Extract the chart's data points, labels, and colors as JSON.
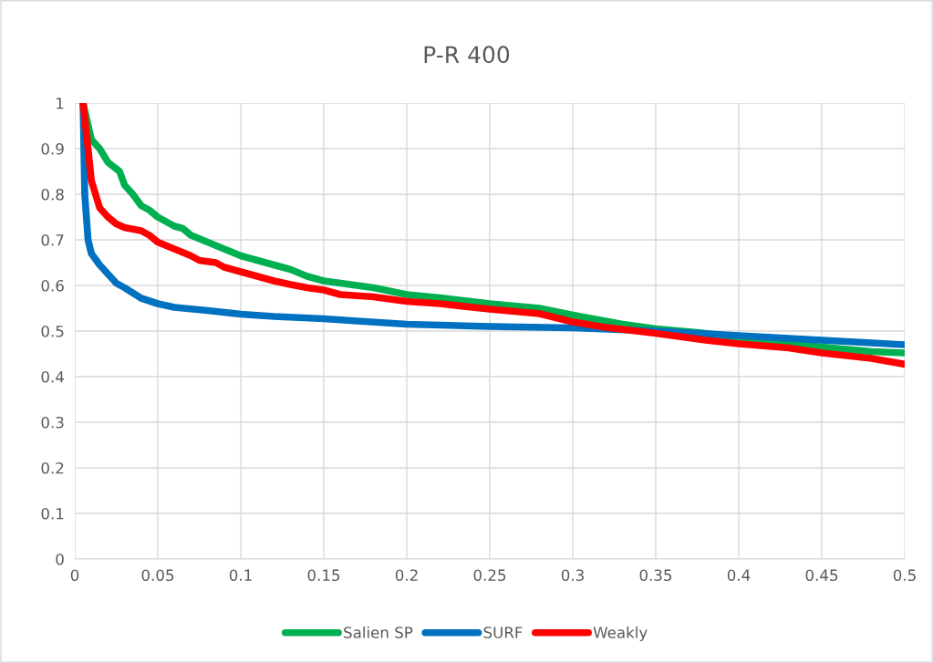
{
  "chart_data": {
    "type": "line",
    "title": "P-R 400",
    "xlim": [
      0,
      0.5
    ],
    "ylim": [
      0,
      1
    ],
    "xticks": [
      0,
      0.05,
      0.1,
      0.15,
      0.2,
      0.25,
      0.3,
      0.35,
      0.4,
      0.45,
      0.5
    ],
    "yticks": [
      0,
      0.1,
      0.2,
      0.3,
      0.4,
      0.5,
      0.6,
      0.7,
      0.8,
      0.9,
      1
    ],
    "grid": true,
    "legend": "bottom",
    "marker": "none",
    "line_style": "solid",
    "series": [
      {
        "name": "Salien SP",
        "color": "#00b050",
        "x": [
          0.005,
          0.01,
          0.015,
          0.02,
          0.027,
          0.03,
          0.035,
          0.04,
          0.045,
          0.05,
          0.06,
          0.065,
          0.07,
          0.08,
          0.09,
          0.1,
          0.11,
          0.12,
          0.13,
          0.14,
          0.15,
          0.16,
          0.18,
          0.2,
          0.22,
          0.25,
          0.28,
          0.3,
          0.33,
          0.35,
          0.38,
          0.4,
          0.45,
          0.48,
          0.5
        ],
        "values": [
          1.0,
          0.92,
          0.9,
          0.87,
          0.85,
          0.82,
          0.8,
          0.775,
          0.765,
          0.75,
          0.73,
          0.725,
          0.71,
          0.695,
          0.68,
          0.665,
          0.655,
          0.645,
          0.635,
          0.62,
          0.61,
          0.605,
          0.595,
          0.58,
          0.573,
          0.56,
          0.55,
          0.535,
          0.515,
          0.505,
          0.495,
          0.485,
          0.465,
          0.455,
          0.452
        ]
      },
      {
        "name": "SURF",
        "color": "#0070c0",
        "x": [
          0.005,
          0.006,
          0.008,
          0.01,
          0.015,
          0.02,
          0.025,
          0.03,
          0.04,
          0.05,
          0.06,
          0.08,
          0.1,
          0.12,
          0.15,
          0.17,
          0.2,
          0.25,
          0.3,
          0.35,
          0.4,
          0.45,
          0.5
        ],
        "values": [
          1.0,
          0.8,
          0.7,
          0.67,
          0.645,
          0.625,
          0.605,
          0.595,
          0.572,
          0.56,
          0.552,
          0.545,
          0.537,
          0.532,
          0.527,
          0.522,
          0.515,
          0.51,
          0.507,
          0.5,
          0.49,
          0.48,
          0.47
        ]
      },
      {
        "name": "Weakly",
        "color": "#ff0000",
        "x": [
          0.005,
          0.008,
          0.01,
          0.015,
          0.02,
          0.025,
          0.03,
          0.04,
          0.045,
          0.05,
          0.06,
          0.07,
          0.075,
          0.085,
          0.09,
          0.1,
          0.11,
          0.12,
          0.13,
          0.14,
          0.15,
          0.16,
          0.18,
          0.2,
          0.22,
          0.25,
          0.28,
          0.3,
          0.32,
          0.35,
          0.38,
          0.4,
          0.43,
          0.45,
          0.48,
          0.5
        ],
        "values": [
          1.0,
          0.9,
          0.83,
          0.77,
          0.75,
          0.735,
          0.727,
          0.72,
          0.71,
          0.695,
          0.68,
          0.665,
          0.655,
          0.65,
          0.64,
          0.63,
          0.62,
          0.61,
          0.602,
          0.595,
          0.59,
          0.58,
          0.575,
          0.565,
          0.56,
          0.548,
          0.538,
          0.52,
          0.508,
          0.495,
          0.48,
          0.472,
          0.463,
          0.452,
          0.44,
          0.427
        ]
      }
    ]
  }
}
